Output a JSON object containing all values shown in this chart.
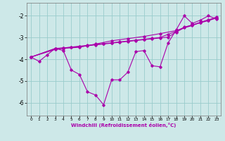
{
  "title": "",
  "xlabel": "Windchill (Refroidissement éolien,°C)",
  "background_color": "#cde8e8",
  "line_color": "#aa00aa",
  "grid_color": "#99cccc",
  "xlim": [
    -0.5,
    23.5
  ],
  "ylim": [
    -6.6,
    -1.4
  ],
  "yticks": [
    -6,
    -5,
    -4,
    -3,
    -2
  ],
  "xticks": [
    0,
    1,
    2,
    3,
    4,
    5,
    6,
    7,
    8,
    9,
    10,
    11,
    12,
    13,
    14,
    15,
    16,
    17,
    18,
    19,
    20,
    21,
    22,
    23
  ],
  "series": [
    [
      0,
      -3.9,
      1,
      -4.1,
      2,
      -3.8,
      3,
      -3.5,
      4,
      -3.6,
      5,
      -4.5,
      6,
      -4.7,
      7,
      -5.5,
      8,
      -5.65,
      9,
      -6.1,
      10,
      -4.95,
      11,
      -4.95,
      12,
      -4.6,
      13,
      -3.65,
      14,
      -3.6,
      15,
      -4.3,
      16,
      -4.35,
      17,
      -3.25,
      18,
      -2.65,
      19,
      -2.0,
      20,
      -2.35,
      21,
      -2.2,
      22,
      -2.0,
      23,
      -2.15
    ],
    [
      0,
      -3.9,
      3,
      -3.5,
      4,
      -3.48,
      5,
      -3.45,
      6,
      -3.42,
      7,
      -3.38,
      8,
      -3.34,
      9,
      -3.3,
      10,
      -3.26,
      11,
      -3.22,
      12,
      -3.18,
      13,
      -3.14,
      14,
      -3.1,
      15,
      -3.06,
      16,
      -3.02,
      17,
      -2.98,
      18,
      -2.75,
      19,
      -2.55,
      20,
      -2.45,
      21,
      -2.3,
      22,
      -2.2,
      23,
      -2.05
    ],
    [
      0,
      -3.9,
      3,
      -3.52,
      4,
      -3.48,
      5,
      -3.44,
      6,
      -3.4,
      7,
      -3.36,
      8,
      -3.32,
      9,
      -3.28,
      10,
      -3.24,
      11,
      -3.2,
      12,
      -3.16,
      13,
      -3.12,
      14,
      -3.08,
      15,
      -3.04,
      16,
      -3.0,
      17,
      -2.85,
      18,
      -2.72,
      19,
      -2.52,
      20,
      -2.42,
      21,
      -2.32,
      22,
      -2.22,
      23,
      -2.1
    ],
    [
      0,
      -3.9,
      3,
      -3.55,
      4,
      -3.5,
      6,
      -3.45,
      8,
      -3.3,
      10,
      -3.15,
      12,
      -3.05,
      14,
      -2.95,
      16,
      -2.82,
      18,
      -2.68,
      20,
      -2.42,
      22,
      -2.18,
      23,
      -2.1
    ]
  ]
}
